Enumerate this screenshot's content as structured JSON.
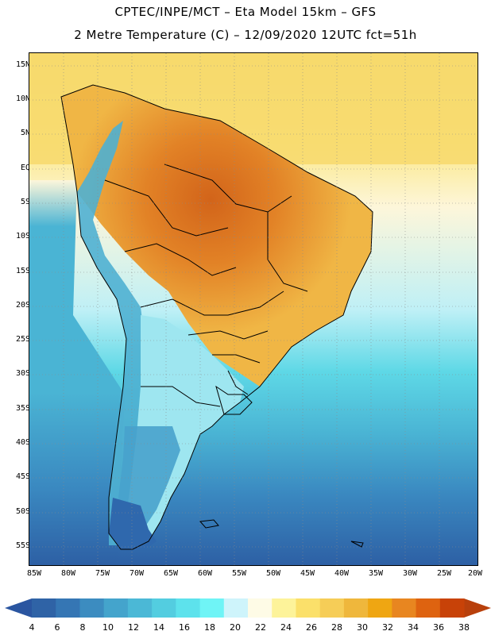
{
  "header": {
    "line1": "CPTEC/INPE/MCT –  Eta Model 15km – GFS",
    "line2": "2 Metre Temperature (C) – 12/09/2020 12UTC fct=51h"
  },
  "axes": {
    "lat_labels": [
      "15N",
      "10N",
      "5N",
      "EQ",
      "5S",
      "10S",
      "15S",
      "20S",
      "25S",
      "30S",
      "35S",
      "40S",
      "45S",
      "50S",
      "55S"
    ],
    "lon_labels": [
      "85W",
      "80W",
      "75W",
      "70W",
      "65W",
      "60W",
      "55W",
      "50W",
      "45W",
      "40W",
      "35W",
      "30W",
      "25W",
      "20W"
    ]
  },
  "colorbar": {
    "labels": [
      "4",
      "6",
      "8",
      "10",
      "12",
      "14",
      "16",
      "18",
      "20",
      "22",
      "24",
      "26",
      "28",
      "30",
      "32",
      "34",
      "36",
      "38"
    ],
    "colors": [
      "#2f63a6",
      "#3576b4",
      "#3c8cc0",
      "#44a4cc",
      "#4bb8d6",
      "#53cde0",
      "#5de2ec",
      "#6ff4f6",
      "#cef4fb",
      "#fefbe6",
      "#fdf39a",
      "#fbe06a",
      "#f6cd57",
      "#efb73c",
      "#efa612",
      "#e88620",
      "#de6310",
      "#c84208"
    ],
    "under_color": "#2a55a0",
    "over_color": "#b8400c"
  },
  "map_colors": {
    "deep_ocean_south": "#2d5fa4",
    "ocean_south": "#3a88c0",
    "ocean_mid": "#4ab4d4",
    "ocean_cyan": "#5ed8e6",
    "ocean_pale": "#bff0f6",
    "ocean_north": "#f7d96c",
    "ocean_north_light": "#fbe88a",
    "ocean_cream": "#fdf6da",
    "land_warm": "#f0b645",
    "land_hot": "#e28226",
    "land_hottest": "#d2641a",
    "andes_cold": "#4fb0d2",
    "andes_mid": "#9ee6f0",
    "patagonia": "#48a2cc",
    "southern_tip": "#2f68ad",
    "borders": "#000000",
    "graticule": "#8a8a8a"
  }
}
